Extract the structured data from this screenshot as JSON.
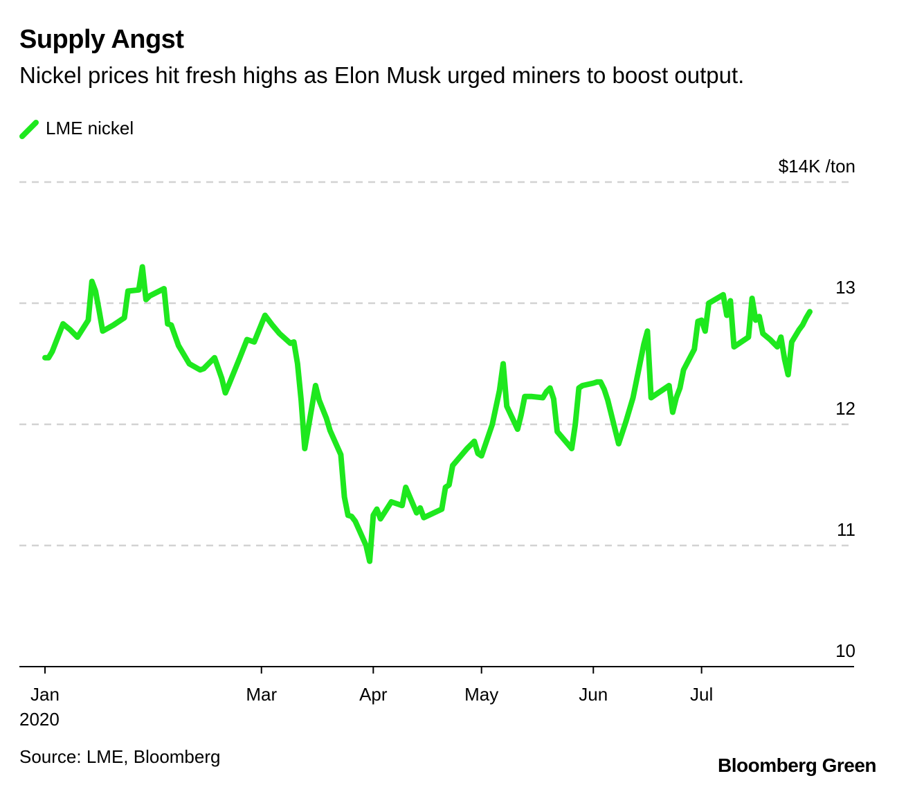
{
  "chart_data": {
    "type": "line",
    "title": "Supply Angst",
    "subtitle": "Nickel prices hit fresh highs as Elon Musk urged miners to boost output.",
    "unit_label": "$14K /ton",
    "source": "Source: LME, Bloomberg",
    "brand": "Bloomberg Green",
    "ylim": [
      10,
      14
    ],
    "yticks": [
      {
        "value": 14,
        "label": "$14K /ton"
      },
      {
        "value": 13,
        "label": "13"
      },
      {
        "value": 12,
        "label": "12"
      },
      {
        "value": 11,
        "label": "11"
      },
      {
        "value": 10,
        "label": "10"
      }
    ],
    "xlim": [
      "2020-01-01",
      "2020-07-31"
    ],
    "xticks": [
      {
        "date": "2020-01-01",
        "label": "Jan",
        "sublabel": "2020"
      },
      {
        "date": "2020-03-01",
        "label": "Mar",
        "sublabel": ""
      },
      {
        "date": "2020-04-01",
        "label": "Apr",
        "sublabel": ""
      },
      {
        "date": "2020-05-01",
        "label": "May",
        "sublabel": ""
      },
      {
        "date": "2020-06-01",
        "label": "Jun",
        "sublabel": ""
      },
      {
        "date": "2020-07-01",
        "label": "Jul",
        "sublabel": ""
      }
    ],
    "grid": true,
    "legend_position": "top-left",
    "series": [
      {
        "name": "LME nickel",
        "color": "#1ee81e",
        "points": [
          [
            "2020-01-01",
            12.55
          ],
          [
            "2020-01-02",
            12.55
          ],
          [
            "2020-01-03",
            12.6
          ],
          [
            "2020-01-06",
            12.83
          ],
          [
            "2020-01-08",
            12.78
          ],
          [
            "2020-01-10",
            12.72
          ],
          [
            "2020-01-13",
            12.86
          ],
          [
            "2020-01-14",
            13.18
          ],
          [
            "2020-01-15",
            13.1
          ],
          [
            "2020-01-16",
            12.94
          ],
          [
            "2020-01-17",
            12.77
          ],
          [
            "2020-01-20",
            12.82
          ],
          [
            "2020-01-23",
            12.88
          ],
          [
            "2020-01-24",
            13.1
          ],
          [
            "2020-01-27",
            13.11
          ],
          [
            "2020-01-28",
            13.3
          ],
          [
            "2020-01-29",
            13.03
          ],
          [
            "2020-01-30",
            13.06
          ],
          [
            "2020-02-03",
            13.12
          ],
          [
            "2020-02-04",
            12.83
          ],
          [
            "2020-02-05",
            12.82
          ],
          [
            "2020-02-07",
            12.65
          ],
          [
            "2020-02-10",
            12.5
          ],
          [
            "2020-02-13",
            12.45
          ],
          [
            "2020-02-14",
            12.46
          ],
          [
            "2020-02-17",
            12.55
          ],
          [
            "2020-02-19",
            12.38
          ],
          [
            "2020-02-20",
            12.26
          ],
          [
            "2020-02-21",
            12.33
          ],
          [
            "2020-02-24",
            12.55
          ],
          [
            "2020-02-26",
            12.7
          ],
          [
            "2020-02-28",
            12.68
          ],
          [
            "2020-03-02",
            12.9
          ],
          [
            "2020-03-04",
            12.82
          ],
          [
            "2020-03-06",
            12.75
          ],
          [
            "2020-03-09",
            12.67
          ],
          [
            "2020-03-10",
            12.68
          ],
          [
            "2020-03-11",
            12.5
          ],
          [
            "2020-03-12",
            12.2
          ],
          [
            "2020-03-13",
            11.8
          ],
          [
            "2020-03-16",
            12.32
          ],
          [
            "2020-03-17",
            12.2
          ],
          [
            "2020-03-19",
            12.05
          ],
          [
            "2020-03-20",
            11.95
          ],
          [
            "2020-03-23",
            11.75
          ],
          [
            "2020-03-24",
            11.4
          ],
          [
            "2020-03-25",
            11.25
          ],
          [
            "2020-03-26",
            11.24
          ],
          [
            "2020-03-27",
            11.2
          ],
          [
            "2020-03-30",
            11.0
          ],
          [
            "2020-03-31",
            10.87
          ],
          [
            "2020-04-01",
            11.25
          ],
          [
            "2020-04-02",
            11.3
          ],
          [
            "2020-04-03",
            11.22
          ],
          [
            "2020-04-06",
            11.36
          ],
          [
            "2020-04-08",
            11.34
          ],
          [
            "2020-04-09",
            11.33
          ],
          [
            "2020-04-10",
            11.48
          ],
          [
            "2020-04-13",
            11.27
          ],
          [
            "2020-04-14",
            11.31
          ],
          [
            "2020-04-15",
            11.23
          ],
          [
            "2020-04-20",
            11.3
          ],
          [
            "2020-04-21",
            11.48
          ],
          [
            "2020-04-22",
            11.5
          ],
          [
            "2020-04-23",
            11.66
          ],
          [
            "2020-04-27",
            11.8
          ],
          [
            "2020-04-29",
            11.86
          ],
          [
            "2020-04-30",
            11.76
          ],
          [
            "2020-05-01",
            11.74
          ],
          [
            "2020-05-04",
            12.0
          ],
          [
            "2020-05-06",
            12.28
          ],
          [
            "2020-05-07",
            12.5
          ],
          [
            "2020-05-08",
            12.15
          ],
          [
            "2020-05-11",
            11.96
          ],
          [
            "2020-05-12",
            12.08
          ],
          [
            "2020-05-13",
            12.23
          ],
          [
            "2020-05-15",
            12.23
          ],
          [
            "2020-05-18",
            12.22
          ],
          [
            "2020-05-19",
            12.27
          ],
          [
            "2020-05-20",
            12.3
          ],
          [
            "2020-05-21",
            12.21
          ],
          [
            "2020-05-22",
            11.94
          ],
          [
            "2020-05-26",
            11.8
          ],
          [
            "2020-05-27",
            12.0
          ],
          [
            "2020-05-28",
            12.3
          ],
          [
            "2020-05-29",
            12.32
          ],
          [
            "2020-06-01",
            12.34
          ],
          [
            "2020-06-02",
            12.35
          ],
          [
            "2020-06-03",
            12.35
          ],
          [
            "2020-06-04",
            12.29
          ],
          [
            "2020-06-05",
            12.2
          ],
          [
            "2020-06-08",
            11.84
          ],
          [
            "2020-06-10",
            12.02
          ],
          [
            "2020-06-12",
            12.22
          ],
          [
            "2020-06-15",
            12.66
          ],
          [
            "2020-06-16",
            12.77
          ],
          [
            "2020-06-17",
            12.22
          ],
          [
            "2020-06-19",
            12.26
          ],
          [
            "2020-06-22",
            12.32
          ],
          [
            "2020-06-23",
            12.1
          ],
          [
            "2020-06-24",
            12.22
          ],
          [
            "2020-06-25",
            12.3
          ],
          [
            "2020-06-26",
            12.45
          ],
          [
            "2020-06-29",
            12.62
          ],
          [
            "2020-06-30",
            12.85
          ],
          [
            "2020-07-01",
            12.86
          ],
          [
            "2020-07-02",
            12.77
          ],
          [
            "2020-07-03",
            13.0
          ],
          [
            "2020-07-07",
            13.07
          ],
          [
            "2020-07-08",
            12.9
          ],
          [
            "2020-07-09",
            13.02
          ],
          [
            "2020-07-10",
            12.64
          ],
          [
            "2020-07-14",
            12.72
          ],
          [
            "2020-07-15",
            13.04
          ],
          [
            "2020-07-16",
            12.86
          ],
          [
            "2020-07-17",
            12.89
          ],
          [
            "2020-07-18",
            12.75
          ],
          [
            "2020-07-20",
            12.7
          ],
          [
            "2020-07-22",
            12.64
          ],
          [
            "2020-07-23",
            12.72
          ],
          [
            "2020-07-24",
            12.54
          ],
          [
            "2020-07-25",
            12.41
          ],
          [
            "2020-07-26",
            12.68
          ],
          [
            "2020-07-28",
            12.78
          ],
          [
            "2020-07-29",
            12.82
          ],
          [
            "2020-07-30",
            12.88
          ],
          [
            "2020-07-31",
            12.93
          ]
        ]
      }
    ]
  }
}
